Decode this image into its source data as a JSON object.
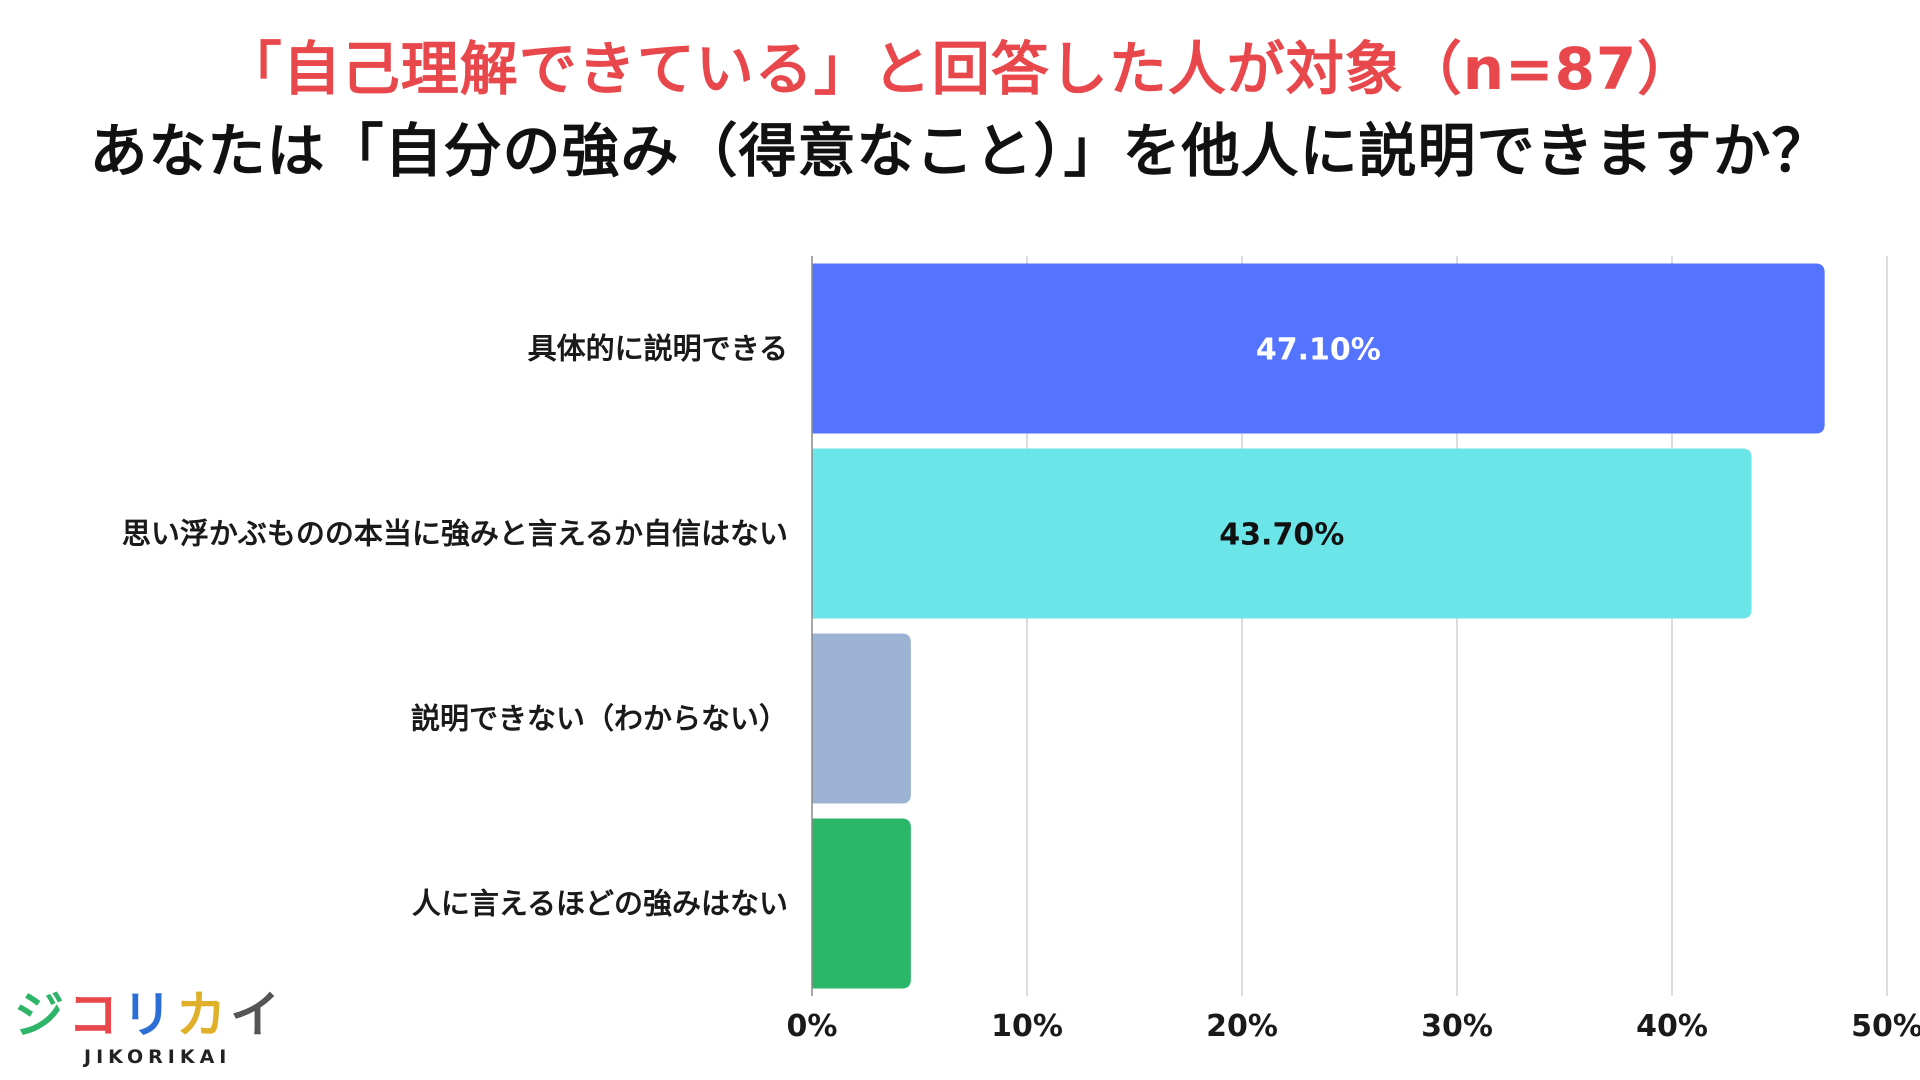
{
  "header": {
    "subtitle": "「自己理解できている」と回答した人が対象（n=87）",
    "title": "あなたは「自分の強み（得意なこと）」を他人に説明できますか？"
  },
  "logo": {
    "kana": [
      "ジ",
      "コ",
      "リ",
      "カ",
      "イ"
    ],
    "kana_colors": [
      "#2eb56a",
      "#e8474c",
      "#2b6fd6",
      "#e0b02a",
      "#555555"
    ],
    "roman": "JIKORIKAI"
  },
  "chart_data": {
    "type": "bar",
    "orientation": "horizontal",
    "categories": [
      "具体的に説明できる",
      "思い浮かぶものの本当に強みと言えるか自信はない",
      "説明できない（わからない）",
      "人に言えるほどの強みはない"
    ],
    "values": [
      47.1,
      43.7,
      4.6,
      4.6
    ],
    "value_labels": [
      "47.10%",
      "43.70%",
      "",
      ""
    ],
    "colors": [
      "#5473ff",
      "#6be5e8",
      "#9db3d4",
      "#2ab76a"
    ],
    "value_label_colors": [
      "#ffffff",
      "#111111",
      "#111111",
      "#111111"
    ],
    "xlim": [
      0,
      50
    ],
    "xticks": [
      0,
      10,
      20,
      30,
      40,
      50
    ],
    "xtick_labels": [
      "0%",
      "10%",
      "20%",
      "30%",
      "40%",
      "50%"
    ],
    "xlabel": "",
    "ylabel": "",
    "grid": true,
    "legend": "none"
  }
}
